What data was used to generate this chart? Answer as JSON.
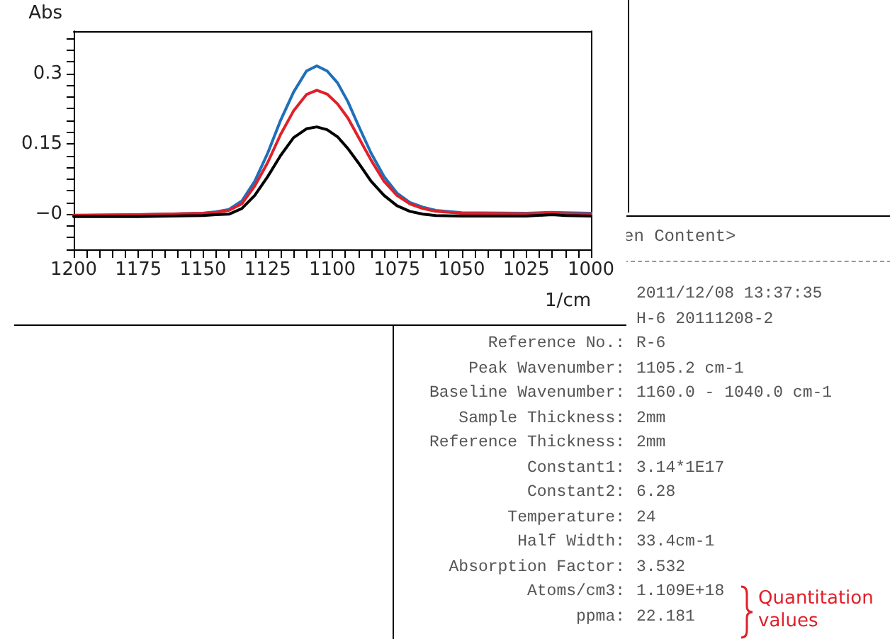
{
  "chart_data": {
    "type": "line",
    "xlabel": "1/cm",
    "ylabel": "Abs",
    "x": [
      1200,
      1175,
      1150,
      1145,
      1140,
      1135,
      1130,
      1125,
      1120,
      1115,
      1110,
      1106,
      1102,
      1098,
      1094,
      1090,
      1085,
      1080,
      1075,
      1070,
      1065,
      1060,
      1050,
      1025,
      1015,
      1010,
      1000
    ],
    "series": [
      {
        "color": "#1f6fba",
        "values": [
          -0.003,
          -0.001,
          0.002,
          0.005,
          0.01,
          0.028,
          0.07,
          0.13,
          0.2,
          0.26,
          0.305,
          0.316,
          0.305,
          0.28,
          0.24,
          0.19,
          0.13,
          0.08,
          0.045,
          0.025,
          0.015,
          0.008,
          0.003,
          0.002,
          0.004,
          0.003,
          0.002
        ]
      },
      {
        "color": "#e0202a",
        "values": [
          -0.002,
          -0.001,
          0.002,
          0.004,
          0.008,
          0.022,
          0.06,
          0.11,
          0.17,
          0.22,
          0.255,
          0.264,
          0.256,
          0.235,
          0.205,
          0.165,
          0.115,
          0.07,
          0.04,
          0.022,
          0.012,
          0.006,
          0.002,
          0.001,
          0.002,
          0.001,
          0
        ]
      },
      {
        "color": "#000000",
        "values": [
          -0.005,
          -0.005,
          -0.003,
          -0.001,
          0,
          0.012,
          0.04,
          0.08,
          0.125,
          0.163,
          0.182,
          0.186,
          0.18,
          0.165,
          0.14,
          0.11,
          0.07,
          0.04,
          0.018,
          0.006,
          0,
          -0.003,
          -0.004,
          -0.004,
          -0.001,
          -0.003,
          -0.004
        ]
      }
    ],
    "xlim": [
      1200,
      1000
    ],
    "xticks": [
      1200,
      {
        "value": 1195,
        "label": null
      },
      {
        "value": 1190,
        "label": null
      },
      {
        "value": 1185,
        "label": null
      },
      {
        "value": 1180,
        "label": null
      },
      1175,
      {
        "value": 1170,
        "label": null
      },
      {
        "value": 1165,
        "label": null
      },
      {
        "value": 1160,
        "label": null
      },
      {
        "value": 1155,
        "label": null
      },
      1150,
      {
        "value": 1145,
        "label": null
      },
      {
        "value": 1140,
        "label": null
      },
      {
        "value": 1135,
        "label": null
      },
      {
        "value": 1130,
        "label": null
      },
      1125,
      {
        "value": 1120,
        "label": null
      },
      {
        "value": 1115,
        "label": null
      },
      {
        "value": 1110,
        "label": null
      },
      {
        "value": 1105,
        "label": null
      },
      1100,
      {
        "value": 1095,
        "label": null
      },
      {
        "value": 1090,
        "label": null
      },
      {
        "value": 1085,
        "label": null
      },
      {
        "value": 1080,
        "label": null
      },
      1075,
      {
        "value": 1070,
        "label": null
      },
      {
        "value": 1065,
        "label": null
      },
      {
        "value": 1060,
        "label": null
      },
      {
        "value": 1055,
        "label": null
      },
      1050,
      {
        "value": 1045,
        "label": null
      },
      {
        "value": 1040,
        "label": null
      },
      {
        "value": 1035,
        "label": null
      },
      {
        "value": 1030,
        "label": null
      },
      1025,
      {
        "value": 1020,
        "label": null
      },
      {
        "value": 1015,
        "label": null
      },
      {
        "value": 1010,
        "label": null
      },
      {
        "value": 1005,
        "label": null
      },
      1000
    ],
    "ylim": [
      -0.075,
      0.39
    ],
    "yticks": [
      {
        "value": -0.075,
        "label": null
      },
      {
        "value": -0.05,
        "label": null
      },
      {
        "value": -0.025,
        "label": null
      },
      {
        "value": 0,
        "label": "−0"
      },
      {
        "value": 0.025,
        "label": null
      },
      {
        "value": 0.05,
        "label": null
      },
      {
        "value": 0.075,
        "label": null
      },
      {
        "value": 0.1,
        "label": null
      },
      {
        "value": 0.125,
        "label": null
      },
      0.15,
      {
        "value": 0.175,
        "label": null
      },
      {
        "value": 0.2,
        "label": null
      },
      {
        "value": 0.225,
        "label": null
      },
      {
        "value": 0.25,
        "label": null
      },
      {
        "value": 0.275,
        "label": null
      },
      0.3,
      {
        "value": 0.325,
        "label": null
      },
      {
        "value": 0.35,
        "label": null
      },
      {
        "value": 0.375,
        "label": null
      }
    ],
    "annotations": [
      "en Content>",
      "2011/12/08 13:37:35",
      "H-6 20111208-2",
      "Reference No.: R-6",
      "Peak Wavenumber: 1105.2 cm-1",
      "Baseline Wavenumber: 1160.0 - 1040.0 cm-1",
      "Sample Thickness: 2mm",
      "Reference Thickness: 2mm",
      "Constant1: 3.14*1E17",
      "Constant2: 6.28",
      "Temperature: 24",
      "Half Width: 33.4cm-1",
      "Absorption Factor: 3.532",
      "Atoms/cm3: 1.109E+18",
      "ppma: 22.181",
      "Quantitation values"
    ]
  }
}
